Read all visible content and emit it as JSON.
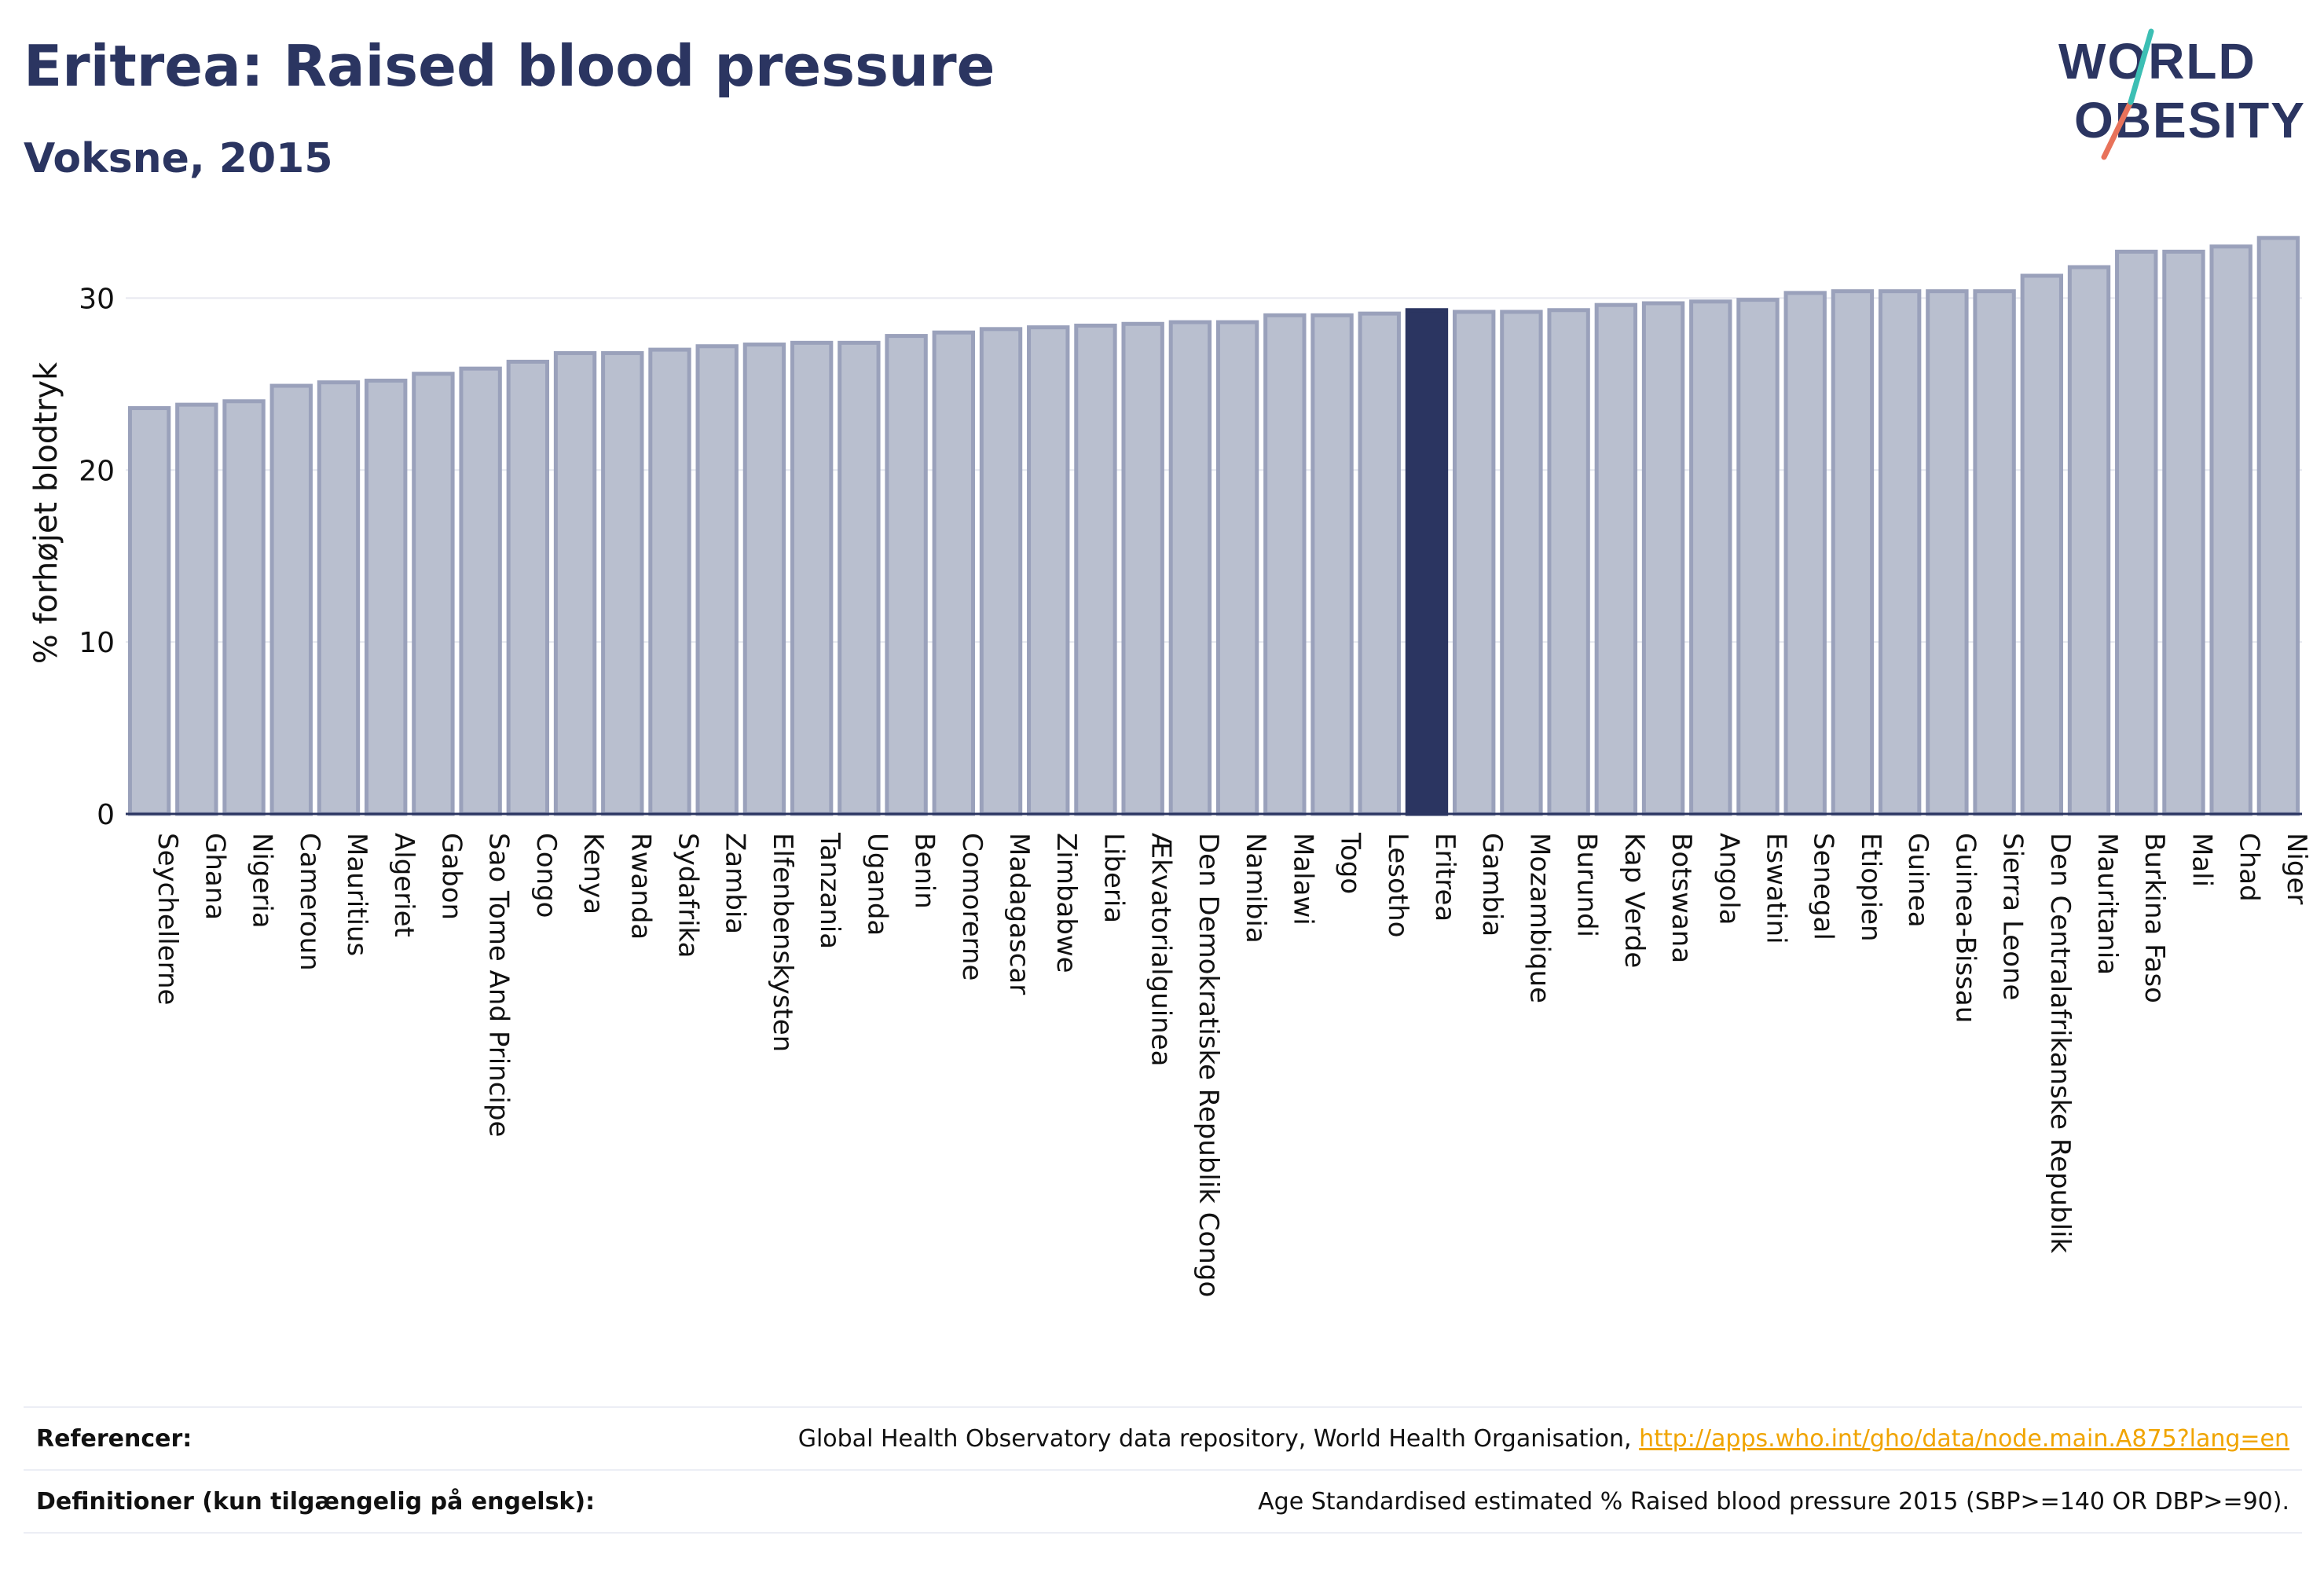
{
  "header": {
    "title": "Eritrea: Raised blood pressure",
    "subtitle": "Voksne, 2015"
  },
  "logo": {
    "line1": "WORLD",
    "line2": "OBESITY"
  },
  "footer": {
    "references_label": "Referencer:",
    "references_text": "Global Health Observatory data repository, World Health Organisation,",
    "references_link": "http://apps.who.int/gho/data/node.main.A875?lang=en",
    "definitions_label": "Definitioner (kun tilgængelig på engelsk):",
    "definitions_text": "Age Standardised estimated % Raised blood pressure 2015 (SBP>=140 OR DBP>=90)."
  },
  "colors": {
    "bar": "#b9bfcf",
    "bar_border": "#9aa1bb",
    "highlight": "#2b3561",
    "title": "#2b3561",
    "link": "#f0a400"
  },
  "chart_data": {
    "type": "bar",
    "title": "Eritrea: Raised blood pressure",
    "subtitle": "Voksne, 2015",
    "ylabel": "% forhøjet blodtryk",
    "xlabel": "",
    "ylim": [
      0,
      35
    ],
    "yticks": [
      0,
      10,
      20,
      30
    ],
    "grid": true,
    "highlight": "Eritrea",
    "categories": [
      "Seychellerne",
      "Ghana",
      "Nigeria",
      "Cameroun",
      "Mauritius",
      "Algeriet",
      "Gabon",
      "Sao Tome And Principe",
      "Congo",
      "Kenya",
      "Rwanda",
      "Sydafrika",
      "Zambia",
      "Elfenbenskysten",
      "Tanzania",
      "Uganda",
      "Benin",
      "Comorerne",
      "Madagascar",
      "Zimbabwe",
      "Liberia",
      "Ækvatorialguinea",
      "Den Demokratiske Republik Congo",
      "Namibia",
      "Malawi",
      "Togo",
      "Lesotho",
      "Eritrea",
      "Gambia",
      "Mozambique",
      "Burundi",
      "Kap Verde",
      "Botswana",
      "Angola",
      "Eswatini",
      "Senegal",
      "Etiopien",
      "Guinea",
      "Guinea-Bissau",
      "Sierra Leone",
      "Den Centralafrikanske Republik",
      "Mauritania",
      "Burkina Faso",
      "Mali",
      "Chad",
      "Niger"
    ],
    "values": [
      23.6,
      23.8,
      24.0,
      24.9,
      25.1,
      25.2,
      25.6,
      25.9,
      26.3,
      26.8,
      26.8,
      27.0,
      27.2,
      27.3,
      27.4,
      27.4,
      27.8,
      28.0,
      28.2,
      28.3,
      28.4,
      28.5,
      28.6,
      28.6,
      29.0,
      29.0,
      29.1,
      29.3,
      29.2,
      29.2,
      29.3,
      29.6,
      29.7,
      29.8,
      29.9,
      30.3,
      30.4,
      30.4,
      30.4,
      30.4,
      31.3,
      31.8,
      32.7,
      32.7,
      33.0,
      33.5
    ]
  }
}
